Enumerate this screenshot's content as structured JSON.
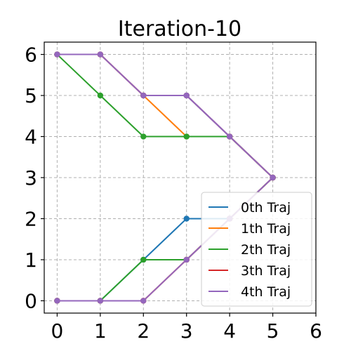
{
  "chart_data": {
    "type": "line",
    "title": "Iteration-10",
    "xlabel": "",
    "ylabel": "",
    "xlim": [
      -0.3,
      6
    ],
    "ylim": [
      -0.3,
      6.3
    ],
    "xticks": [
      0,
      1,
      2,
      3,
      4,
      5,
      6
    ],
    "yticks": [
      0,
      1,
      2,
      3,
      4,
      5,
      6
    ],
    "grid": true,
    "legend_position": "lower-right",
    "series": [
      {
        "name": "0th Traj",
        "color": "#1f77b4",
        "points": [
          [
            0,
            6
          ],
          [
            1,
            6
          ],
          [
            2,
            5
          ],
          [
            3,
            5
          ],
          [
            4,
            4
          ],
          [
            5,
            3
          ],
          [
            4,
            2
          ],
          [
            3,
            2
          ],
          [
            2,
            1
          ],
          [
            1,
            0
          ],
          [
            0,
            0
          ]
        ]
      },
      {
        "name": "1th Traj",
        "color": "#ff7f0e",
        "points": [
          [
            0,
            6
          ],
          [
            1,
            6
          ],
          [
            2,
            5
          ],
          [
            3,
            4
          ],
          [
            4,
            4
          ],
          [
            5,
            3
          ],
          [
            4,
            2
          ],
          [
            3,
            1
          ],
          [
            2,
            0
          ],
          [
            1,
            0
          ],
          [
            0,
            0
          ]
        ]
      },
      {
        "name": "2th Traj",
        "color": "#2ca02c",
        "points": [
          [
            0,
            6
          ],
          [
            1,
            5
          ],
          [
            2,
            4
          ],
          [
            3,
            4
          ],
          [
            4,
            4
          ],
          [
            5,
            3
          ],
          [
            4,
            2
          ],
          [
            3,
            1
          ],
          [
            2,
            1
          ],
          [
            1,
            0
          ],
          [
            0,
            0
          ]
        ]
      },
      {
        "name": "3th Traj",
        "color": "#d62728",
        "points": [
          [
            0,
            6
          ],
          [
            1,
            6
          ],
          [
            2,
            5
          ],
          [
            3,
            5
          ],
          [
            4,
            4
          ],
          [
            5,
            3
          ],
          [
            4,
            2
          ],
          [
            3,
            1
          ],
          [
            2,
            0
          ],
          [
            1,
            0
          ],
          [
            0,
            0
          ]
        ]
      },
      {
        "name": "4th Traj",
        "color": "#9467bd",
        "points": [
          [
            0,
            6
          ],
          [
            1,
            6
          ],
          [
            2,
            5
          ],
          [
            3,
            5
          ],
          [
            4,
            4
          ],
          [
            5,
            3
          ],
          [
            4,
            2
          ],
          [
            3,
            1
          ],
          [
            2,
            0
          ],
          [
            1,
            0
          ],
          [
            0,
            0
          ]
        ]
      }
    ]
  }
}
